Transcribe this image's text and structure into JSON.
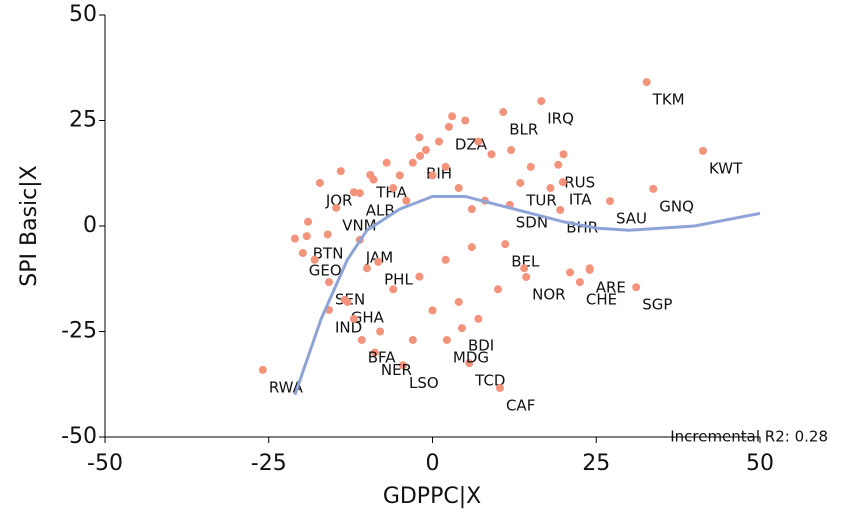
{
  "chart_data": {
    "type": "scatter",
    "xlabel": "GDPPC|X",
    "ylabel": "SPI Basic|X",
    "annotation": "Incremental R2: 0.28",
    "xlim": [
      -50,
      50
    ],
    "ylim": [
      -50,
      50
    ],
    "xticks": [
      -50,
      -25,
      0,
      25,
      50
    ],
    "yticks": [
      -50,
      -25,
      0,
      25,
      50
    ],
    "grid": false,
    "series": [
      {
        "color": "#f4937c",
        "x": [
          32.7,
          41.3,
          16.6,
          10.8,
          2.5,
          19.2,
          19.9,
          13.4,
          33.7,
          27.1,
          19.5,
          11.8,
          11.1,
          14.3,
          22.5,
          31.1,
          24,
          5.6,
          10.3,
          4.5,
          2.2,
          -4.5,
          -8.8,
          -10.8,
          -25.9,
          -15.8,
          -13.4,
          -15.8,
          -19.8,
          -19.2,
          -17.2,
          -14.7,
          -11.1,
          -9.5,
          -11.1,
          -8.3,
          -1.9,
          -14,
          -12,
          -9,
          -7,
          -5,
          -3,
          -1,
          1,
          3,
          5,
          7,
          9,
          -2,
          -6,
          -4,
          0,
          2,
          4,
          6,
          8,
          12,
          15,
          18,
          20,
          -19,
          -21,
          -16,
          -10,
          -6,
          -2,
          2,
          6,
          10,
          14,
          -12,
          -8,
          0,
          4,
          21,
          24,
          -18,
          -13,
          -3,
          7
        ],
        "values": [
          34.1,
          17.8,
          29.6,
          27.0,
          23.5,
          14.5,
          10.4,
          10.2,
          8.8,
          5.9,
          3.8,
          5.0,
          -4.3,
          -12.1,
          -13.3,
          -14.5,
          -10.4,
          -32.5,
          -38.4,
          -24.2,
          -27,
          -33,
          -30,
          -27,
          -34.1,
          -13.3,
          -17.5,
          -19.9,
          -6.4,
          -2.4,
          10.2,
          4.3,
          7.8,
          12.1,
          -3.3,
          -8.5,
          16.6,
          13,
          8,
          11,
          15,
          12,
          15,
          18,
          20,
          26,
          25,
          20,
          17,
          21,
          9,
          6,
          12,
          14,
          9,
          4,
          6,
          18,
          14,
          9,
          17,
          1,
          -3,
          -2,
          -10,
          -15,
          -12,
          -8,
          -5,
          -15,
          -10,
          -22,
          -25,
          -20,
          -18,
          -11,
          -10,
          -8,
          -18,
          -27,
          -22
        ],
        "labels": [
          "TKM",
          "KWT",
          "IRQ",
          "BLR",
          "DZA",
          "RUS",
          "ITA",
          "TUR",
          "GNQ",
          "SAU",
          "BHR",
          "SDN",
          "BEL",
          "NOR",
          "CHE",
          "SGP",
          "ARE",
          "TCD",
          "CAF",
          "BDI",
          "MDG",
          "LSO",
          "NER",
          "BFA",
          "RWA",
          "SEN",
          "GHA",
          "IND",
          "GEO",
          "BTN",
          "JOR",
          "VNM",
          "ALB",
          "THA",
          "JAM",
          "PHL",
          "BIH",
          null,
          null,
          null,
          null,
          null,
          null,
          null,
          null,
          null,
          null,
          null,
          null,
          null,
          null,
          null,
          null,
          null,
          null,
          null,
          null,
          null,
          null,
          null,
          null,
          null,
          null,
          null,
          null,
          null,
          null,
          null,
          null,
          null,
          null,
          null,
          null,
          null,
          null,
          null,
          null,
          null,
          null,
          null,
          null
        ]
      },
      {
        "type": "line",
        "color": "#8fa4d6",
        "x": [
          -21,
          -17,
          -13,
          -10,
          -5,
          0,
          5,
          10,
          15,
          20,
          25,
          30,
          35,
          40,
          45,
          50
        ],
        "values": [
          -40,
          -22,
          -8,
          -1,
          4,
          7,
          7,
          5,
          3,
          1,
          -0.5,
          -1,
          -0.5,
          0,
          1.5,
          3
        ]
      }
    ]
  }
}
